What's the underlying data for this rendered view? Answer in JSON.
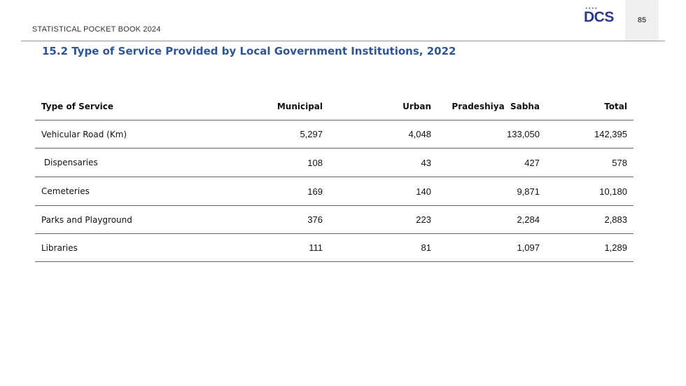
{
  "header": {
    "book_title": "STATISTICAL POCKET BOOK 2024",
    "logo_text": "DCS",
    "logo_dots": "••••",
    "page_number": "85"
  },
  "section": {
    "title": "15.2 Type of Service Provided by Local Government Institutions, 2022"
  },
  "table": {
    "headers": [
      "Type of Service",
      "Municipal",
      "Urban",
      "Pradeshiya  Sabha",
      "Total"
    ],
    "rows": [
      {
        "service": "Vehicular Road (Km)",
        "municipal": "5,297",
        "urban": "4,048",
        "pradeshiya_sabha": "133,050",
        "total": "142,395"
      },
      {
        "service": " Dispensaries",
        "municipal": "108",
        "urban": "43",
        "pradeshiya_sabha": "427",
        "total": "578"
      },
      {
        "service": "Cemeteries",
        "municipal": "169",
        "urban": "140",
        "pradeshiya_sabha": "9,871",
        "total": "10,180"
      },
      {
        "service": "Parks and Playground",
        "municipal": "376",
        "urban": "223",
        "pradeshiya_sabha": "2,284",
        "total": "2,883"
      },
      {
        "service": "Libraries",
        "municipal": "111",
        "urban": "81",
        "pradeshiya_sabha": "1,097",
        "total": "1,289"
      }
    ]
  },
  "colors": {
    "title_blue": "#2e5597",
    "logo_navy": "#2d3a8c",
    "page_box_gray": "#efefef"
  }
}
